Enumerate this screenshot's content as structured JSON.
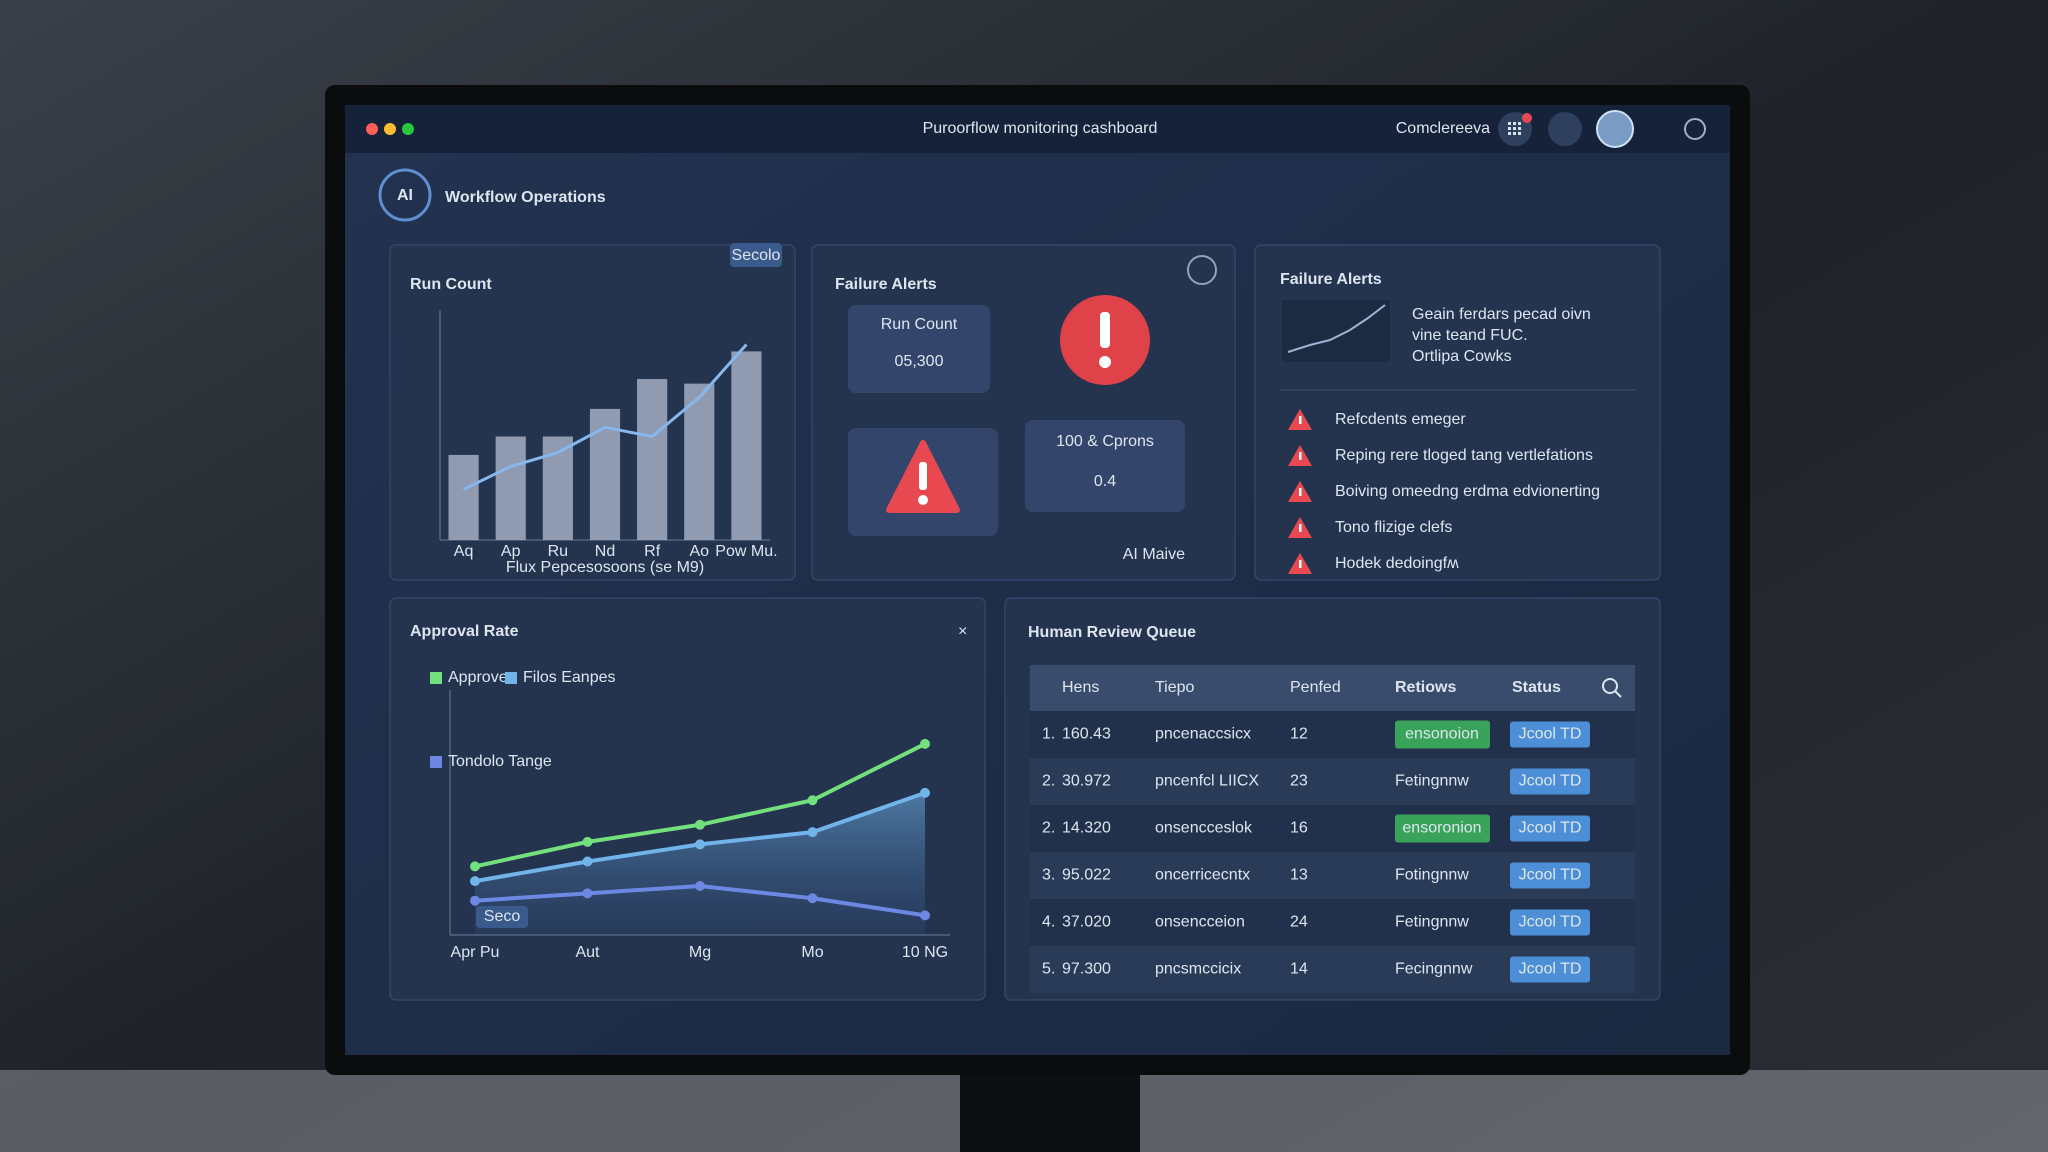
{
  "window": {
    "title": "Puroorflow monitoring cashboard",
    "user": "Comclereeva"
  },
  "header": {
    "logo": "AI",
    "title": "Workflow Operations"
  },
  "chart_data": [
    {
      "type": "bar",
      "title": "Run Count",
      "badge": "Secolo",
      "categories": [
        "Aq",
        "Ap",
        "Ru",
        "Nd",
        "Rf",
        "Ao",
        "Pow Mu."
      ],
      "x_label": "Flux Pepcesosoons (se M9)",
      "ylim": [
        0,
        100
      ],
      "series": [
        {
          "type": "bar",
          "color": "#a3adc2",
          "values": [
            37,
            45,
            45,
            57,
            70,
            68,
            82
          ]
        },
        {
          "type": "line",
          "color": "#86b8ee",
          "values": [
            22,
            32,
            38,
            49,
            45,
            62,
            85
          ]
        }
      ]
    },
    {
      "type": "area",
      "title": "Approval Rate",
      "annotation": "Seco",
      "categories": [
        "Apr Pu",
        "Aut",
        "Mg",
        "Mo",
        "10 NG"
      ],
      "ylim": [
        0,
        100
      ],
      "series": [
        {
          "name": "Approve",
          "color": "#72e07c",
          "values": [
            28,
            38,
            45,
            55,
            78
          ]
        },
        {
          "name": "Filos Eanpes",
          "color": "#70b4ea",
          "values": [
            22,
            30,
            37,
            42,
            58
          ]
        },
        {
          "name": "Tondolo Tange",
          "color": "#6d88e2",
          "values": [
            14,
            17,
            20,
            15,
            8
          ]
        }
      ]
    }
  ],
  "failure_alerts": {
    "title": "Failure Alerts",
    "run_count": {
      "label": "Run Count",
      "value": "05,300"
    },
    "ratio": {
      "label": "100 & Cprons",
      "value": "0.4"
    },
    "footer": "AI Maive"
  },
  "alerts_panel": {
    "title": "Failure Alerts",
    "summary": [
      "Geain ferdars pecad oivn",
      "vine teand FUC.",
      "Ortlipa Cowks"
    ],
    "items": [
      "Refcdents emeger",
      "Reping rere tloged tang vertlefations",
      "Boiving omeedng erdma edvionerting",
      "Tono flizige clefs",
      "Hodek dedoingfʍ"
    ]
  },
  "review_queue": {
    "title": "Human Review Queue",
    "columns": [
      "Hens",
      "Tiepo",
      "Penfed",
      "Retiows",
      "Status"
    ],
    "rows": [
      {
        "num": "1.",
        "hens": "160.43",
        "tiepo": "pncenaccsicx",
        "penfed": "12",
        "retiows": "ensonoion",
        "badge": true,
        "status": "Jcool TD"
      },
      {
        "num": "2.",
        "hens": "30.972",
        "tiepo": "pncenfcl LIICX",
        "penfed": "23",
        "retiows": "Fetingnnw",
        "badge": false,
        "status": "Jcool TD"
      },
      {
        "num": "2.",
        "hens": "14.320",
        "tiepo": "onsencceslok",
        "penfed": "16",
        "retiows": "ensoronion",
        "badge": true,
        "status": "Jcool TD"
      },
      {
        "num": "3.",
        "hens": "95.022",
        "tiepo": "oncerricecntx",
        "penfed": "13",
        "retiows": "Fotingnnw",
        "badge": false,
        "status": "Jcool TD"
      },
      {
        "num": "4.",
        "hens": "37.020",
        "tiepo": "onsencceion",
        "penfed": "24",
        "retiows": "Fetingnnw",
        "badge": false,
        "status": "Jcool TD"
      },
      {
        "num": "5.",
        "hens": "97.300",
        "tiepo": "pncsmccicix",
        "penfed": "14",
        "retiows": "Fecingnnw",
        "badge": false,
        "status": "Jcool TD"
      }
    ]
  }
}
